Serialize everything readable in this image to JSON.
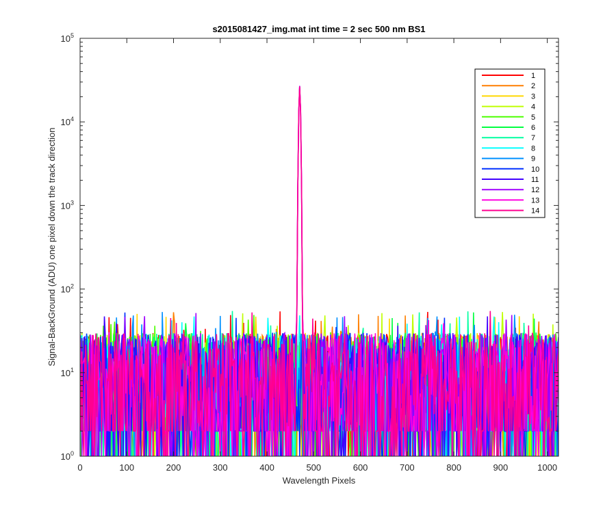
{
  "chart_data": {
    "type": "line",
    "title": "s2015081427_img.mat int time = 2 sec  500 nm BS1",
    "xlabel": "Wavelength Pixels",
    "ylabel": "Signal-BackGround (ADU) one pixel down the track direction",
    "xlim": [
      0,
      1024
    ],
    "ylim": [
      1,
      100000
    ],
    "yscale": "log",
    "grid": false,
    "legend_position": "top-right",
    "x_ticks": [
      "0",
      "100",
      "200",
      "300",
      "400",
      "500",
      "600",
      "700",
      "800",
      "900",
      "1000"
    ],
    "y_ticks": [
      {
        "base": "10",
        "exp": "0"
      },
      {
        "base": "10",
        "exp": "1"
      },
      {
        "base": "10",
        "exp": "2"
      },
      {
        "base": "10",
        "exp": "3"
      },
      {
        "base": "10",
        "exp": "4"
      },
      {
        "base": "10",
        "exp": "5"
      }
    ],
    "noise_floor": {
      "min": 1,
      "typical": [
        2,
        30
      ],
      "max": 55
    },
    "peak": {
      "x": 470,
      "y": 27000,
      "fwhm_pixels": 4,
      "series": [
        "11",
        "12",
        "13",
        "14"
      ]
    },
    "series": [
      {
        "name": "1",
        "color": "#FF0000"
      },
      {
        "name": "2",
        "color": "#FF7F00"
      },
      {
        "name": "3",
        "color": "#FFD700"
      },
      {
        "name": "4",
        "color": "#BFFF00"
      },
      {
        "name": "5",
        "color": "#4CFF00"
      },
      {
        "name": "6",
        "color": "#00FF40"
      },
      {
        "name": "7",
        "color": "#00FFA0"
      },
      {
        "name": "8",
        "color": "#00FFFF"
      },
      {
        "name": "9",
        "color": "#0090FF"
      },
      {
        "name": "10",
        "color": "#0030FF"
      },
      {
        "name": "11",
        "color": "#4000FF"
      },
      {
        "name": "12",
        "color": "#A000FF"
      },
      {
        "name": "13",
        "color": "#FF00E0"
      },
      {
        "name": "14",
        "color": "#FF0090"
      }
    ]
  }
}
